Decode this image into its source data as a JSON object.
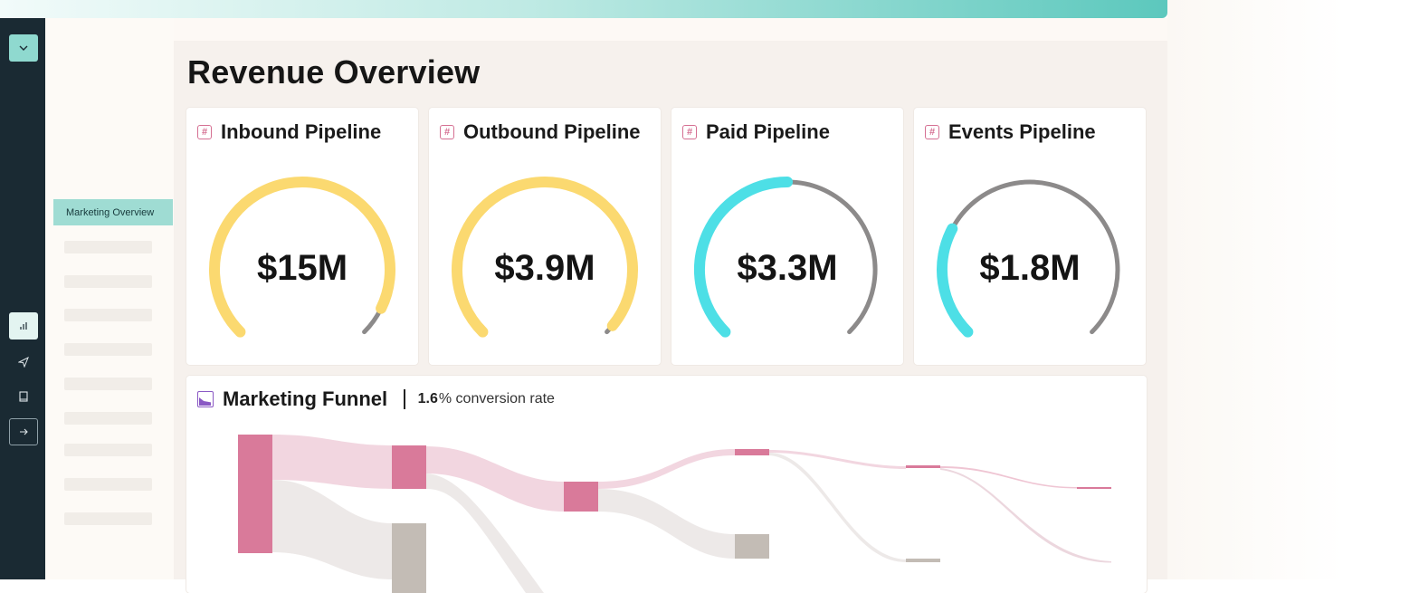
{
  "page": {
    "title": "Revenue Overview"
  },
  "sidebar": {
    "active_item": "Marketing Overview"
  },
  "rail": {
    "icons": [
      "chevron-down-icon",
      "bar-chart-icon",
      "send-icon",
      "book-icon",
      "arrow-right-icon"
    ]
  },
  "cards": [
    {
      "title": "Inbound Pipeline",
      "value": "$15M",
      "progress": 0.93,
      "color": "#fbd970"
    },
    {
      "title": "Outbound Pipeline",
      "value": "$3.9M",
      "progress": 0.98,
      "color": "#fbd970"
    },
    {
      "title": "Paid Pipeline",
      "value": "$3.3M",
      "progress": 0.5,
      "color": "#4ddfe6"
    },
    {
      "title": "Events Pipeline",
      "value": "$1.8M",
      "progress": 0.27,
      "color": "#4ddfe6"
    }
  ],
  "funnel": {
    "title": "Marketing Funnel",
    "conversion_value": "1.6",
    "conversion_text": "% conversion rate"
  },
  "colors": {
    "rail": "#1a2a33",
    "accent": "#9fdcd3",
    "gauge_track": "#8c8a8a",
    "funnel_pink": "#d97a9a",
    "funnel_gray": "#c3bcb5"
  }
}
